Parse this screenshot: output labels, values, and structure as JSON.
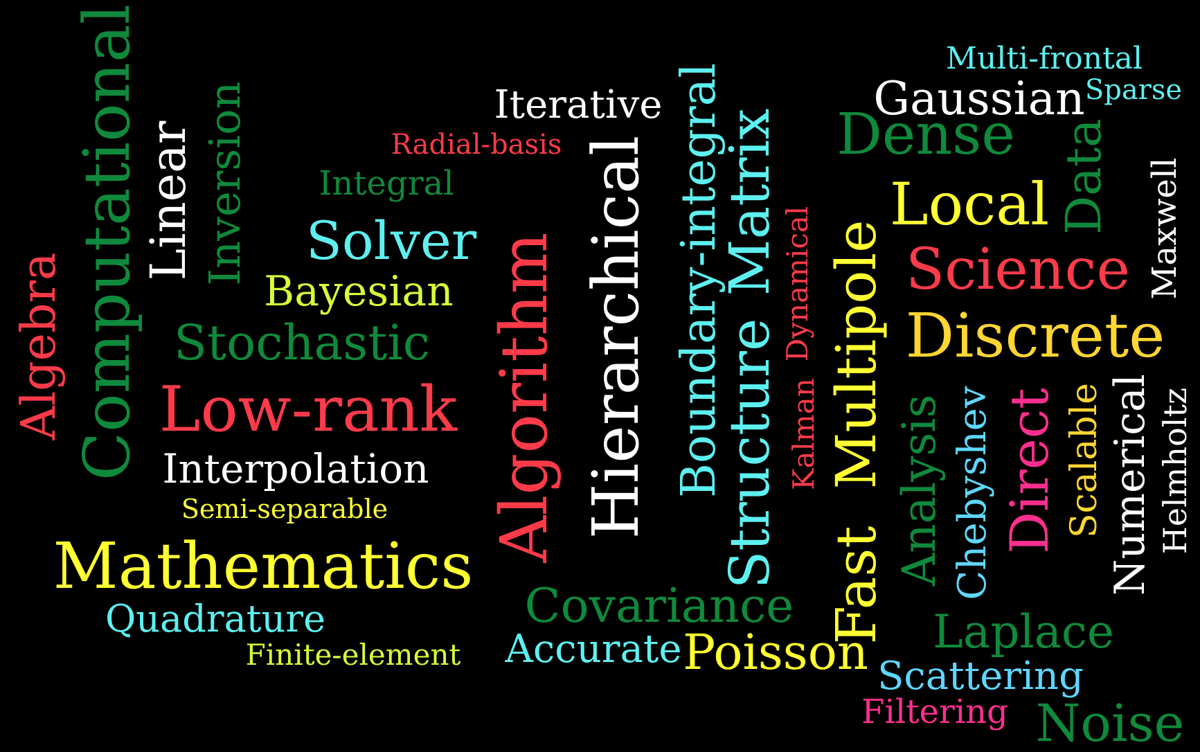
{
  "palette": {
    "background": "#000000",
    "white": "#ffffff",
    "green": "#0f8a3c",
    "cyan": "#5ef0f0",
    "red": "#ff3b4a",
    "yellow": "#ffff33",
    "gold": "#ffd633",
    "lime": "#d7ff3a",
    "pink": "#ff2f8f",
    "lightblue": "#5fd6ff"
  },
  "words": {
    "computational": "Computational",
    "algebra": "Algebra",
    "linear": "Linear",
    "inversion": "Inversion",
    "iterative": "Iterative",
    "radial_basis": "Radial-basis",
    "integral": "Integral",
    "solver": "Solver",
    "bayesian": "Bayesian",
    "stochastic": "Stochastic",
    "low_rank": "Low-rank",
    "interpolation": "Interpolation",
    "semi_separable": "Semi-separable",
    "mathematics": "Mathematics",
    "quadrature": "Quadrature",
    "finite_element": "Finite-element",
    "algorithm": "Algorithm",
    "hierarchical": "Hierarchical",
    "covariance": "Covariance",
    "accurate": "Accurate",
    "poisson": "Poisson",
    "boundary_integral": "Boundary-integral",
    "structure": "Structure",
    "matrix": "Matrix",
    "dynamical": "Dynamical",
    "kalman": "Kalman",
    "fast": "Fast",
    "multipole": "Multipole",
    "dense": "Dense",
    "gaussian": "Gaussian",
    "multi_frontal": "Multi-frontal",
    "sparse": "Sparse",
    "local": "Local",
    "data": "Data",
    "science": "Science",
    "discrete": "Discrete",
    "maxwell": "Maxwell",
    "analysis": "Analysis",
    "chebyshev": "Chebyshev",
    "direct": "Direct",
    "scalable": "Scalable",
    "numerical": "Numerical",
    "helmholtz": "Helmholtz",
    "laplace": "Laplace",
    "scattering": "Scattering",
    "filtering": "Filtering",
    "noise": "Noise"
  }
}
